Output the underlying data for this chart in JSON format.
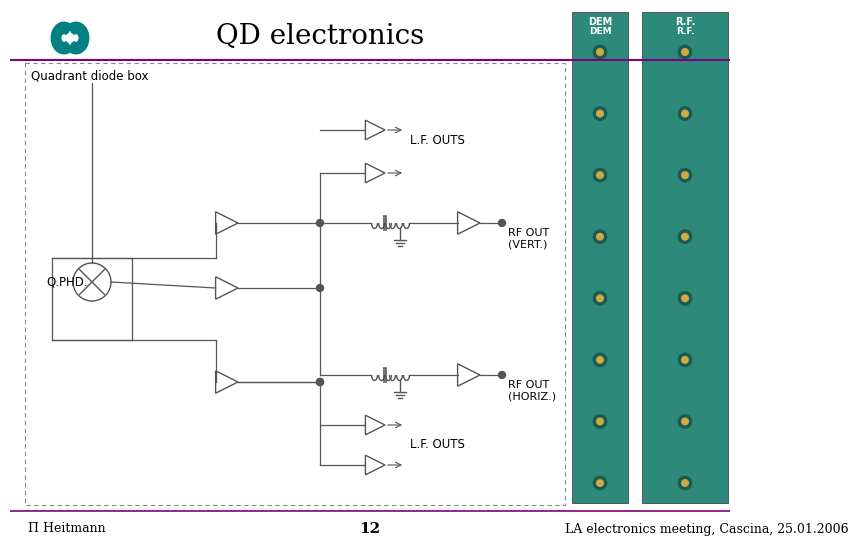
{
  "title": "QD electronics",
  "subtitle_box": "Quadrant diode box",
  "footer_left": "Π Heitmann",
  "footer_center": "12",
  "footer_right": "LA electronics meeting, Cascina, 25.01.2006",
  "label_lf_outs_top": "L.F. OUTS",
  "label_rf_vert": "RF OUT\n(VERT.)",
  "label_rf_horiz": "RF OUT\n(HORIZ.)",
  "label_lf_outs_bot": "L.F. OUTS",
  "label_qphd": "Q.PHD.",
  "teal_color": "#008080",
  "purple_color": "#800080",
  "bg_color": "#ffffff",
  "line_color": "#555555",
  "title_fontsize": 20,
  "footer_fontsize": 9,
  "label_fontsize": 9
}
